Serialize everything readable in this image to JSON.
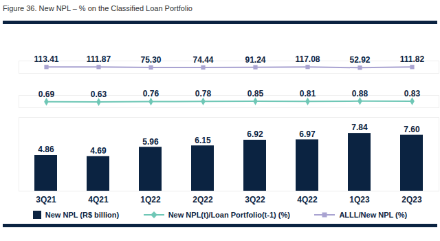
{
  "chart_data": [
    {
      "type": "line",
      "title": "Figure 36. New NPL – % on the Classified Loan Portfolio",
      "categories": [
        "3Q21",
        "4Q21",
        "1Q22",
        "2Q22",
        "3Q22",
        "4Q22",
        "1Q23",
        "2Q23"
      ],
      "series": [
        {
          "name": "ALLL/New NPL (%)",
          "color": "#a9a3d1",
          "marker": "square",
          "values": [
            113.41,
            111.87,
            75.3,
            74.44,
            91.24,
            117.08,
            52.92,
            111.82
          ],
          "value_labels": [
            "113.41",
            "111.87",
            "75.30",
            "74.44",
            "91.24",
            "117.08",
            "52.92",
            "111.82"
          ]
        }
      ],
      "ylim": [
        -400,
        600
      ],
      "tick_labels": false,
      "data_labels": true,
      "legend": "bottom"
    },
    {
      "type": "line",
      "categories": [
        "3Q21",
        "4Q21",
        "1Q22",
        "2Q22",
        "3Q22",
        "4Q22",
        "1Q23",
        "2Q23"
      ],
      "series": [
        {
          "name": "New NPL(t)/Loan Portfolio(t-1) (%)",
          "color": "#6fc7b6",
          "marker": "diamond",
          "values": [
            0.69,
            0.63,
            0.76,
            0.78,
            0.85,
            0.81,
            0.88,
            0.83
          ],
          "value_labels": [
            "0.69",
            "0.63",
            "0.76",
            "0.78",
            "0.85",
            "0.81",
            "0.88",
            "0.83"
          ]
        }
      ],
      "ylim": [
        -1,
        2.5
      ],
      "tick_labels": false,
      "data_labels": true,
      "legend": "bottom"
    },
    {
      "type": "bar",
      "categories": [
        "3Q21",
        "4Q21",
        "1Q22",
        "2Q22",
        "3Q22",
        "4Q22",
        "1Q23",
        "2Q23"
      ],
      "series": [
        {
          "name": "New NPL (R$ billion)",
          "color": "#0b2341",
          "values": [
            4.86,
            4.69,
            5.96,
            6.15,
            6.92,
            6.97,
            7.84,
            7.6
          ],
          "value_labels": [
            "4.86",
            "4.69",
            "5.96",
            "6.15",
            "6.92",
            "6.97",
            "7.84",
            "7.60"
          ]
        }
      ],
      "ylim": [
        0,
        10
      ],
      "tick_labels": "x",
      "data_labels": true,
      "legend": "bottom"
    }
  ]
}
